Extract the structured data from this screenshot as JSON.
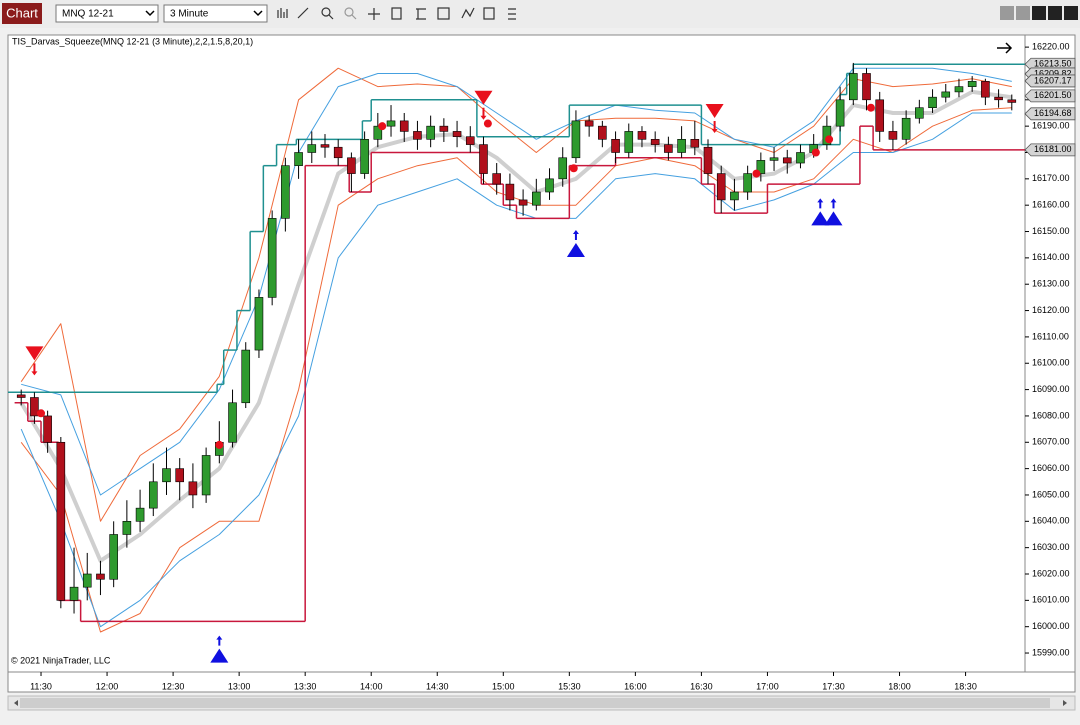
{
  "toolbar": {
    "title": "Chart",
    "instrument": "MNQ 12-21",
    "interval": "3 Minute"
  },
  "chart_data": {
    "type": "candlestick",
    "indicator_label": "TIS_Darvas_Squeeze(MNQ 12-21 (3 Minute),2,2,1.5,8,20,1)",
    "copyright": "© 2021 NinjaTrader, LLC",
    "xlim": [
      "11:15",
      "18:57"
    ],
    "ylim": [
      15982.8,
      16224.6
    ],
    "grid": false,
    "xticks": [
      "11:30",
      "12:00",
      "12:30",
      "13:00",
      "13:30",
      "14:00",
      "14:30",
      "15:00",
      "15:30",
      "16:00",
      "16:30",
      "17:00",
      "17:30",
      "18:00",
      "18:30"
    ],
    "yticks": [
      {
        "value": 16220,
        "label": "16220.00"
      },
      {
        "value": 16210,
        "label": "16210.00"
      },
      {
        "value": 16200,
        "label": "16200.00"
      },
      {
        "value": 16190,
        "label": "16190.00"
      },
      {
        "value": 16180,
        "label": "16180.00"
      },
      {
        "value": 16170,
        "label": "16170.00"
      },
      {
        "value": 16160,
        "label": "16160.00"
      },
      {
        "value": 16150,
        "label": "16150.00"
      },
      {
        "value": 16140,
        "label": "16140.00"
      },
      {
        "value": 16130,
        "label": "16130.00"
      },
      {
        "value": 16120,
        "label": "16120.00"
      },
      {
        "value": 16110,
        "label": "16110.00"
      },
      {
        "value": 16100,
        "label": "16100.00"
      },
      {
        "value": 16090,
        "label": "16090.00"
      },
      {
        "value": 16080,
        "label": "16080.00"
      },
      {
        "value": 16070,
        "label": "16070.00"
      },
      {
        "value": 16060,
        "label": "16060.00"
      },
      {
        "value": 16050,
        "label": "16050.00"
      },
      {
        "value": 16040,
        "label": "16040.00"
      },
      {
        "value": 16030,
        "label": "16030.00"
      },
      {
        "value": 16020,
        "label": "16020.00"
      },
      {
        "value": 16010,
        "label": "16010.00"
      },
      {
        "value": 16000,
        "label": "16000.00"
      },
      {
        "value": 15990,
        "label": "15990.00"
      }
    ],
    "up_color": "#2e9a2e",
    "down_color": "#b0101c",
    "x": [
      "11:21",
      "11:27",
      "11:33",
      "11:39",
      "11:45",
      "11:51",
      "11:57",
      "12:03",
      "12:09",
      "12:15",
      "12:21",
      "12:27",
      "12:33",
      "12:39",
      "12:45",
      "12:51",
      "12:57",
      "13:03",
      "13:09",
      "13:15",
      "13:21",
      "13:27",
      "13:33",
      "13:39",
      "13:45",
      "13:51",
      "13:57",
      "14:03",
      "14:09",
      "14:15",
      "14:21",
      "14:27",
      "14:33",
      "14:39",
      "14:45",
      "14:51",
      "14:57",
      "15:03",
      "15:09",
      "15:15",
      "15:21",
      "15:27",
      "15:33",
      "15:39",
      "15:45",
      "15:51",
      "15:57",
      "16:03",
      "16:09",
      "16:15",
      "16:21",
      "16:27",
      "16:33",
      "16:39",
      "16:45",
      "16:51",
      "16:57",
      "17:03",
      "17:09",
      "17:15",
      "17:21",
      "17:27",
      "17:33",
      "17:39",
      "17:45",
      "17:51",
      "17:57",
      "18:03",
      "18:09",
      "18:15",
      "18:21",
      "18:27",
      "18:33",
      "18:39",
      "18:45",
      "18:51"
    ],
    "candles": [
      [
        16088,
        16090,
        16084,
        16087
      ],
      [
        16087,
        16089,
        16077,
        16080
      ],
      [
        16080,
        16082,
        16066,
        16070
      ],
      [
        16070,
        16072,
        16007,
        16010
      ],
      [
        16010,
        16030,
        16005,
        16015
      ],
      [
        16015,
        16028,
        16010,
        16020
      ],
      [
        16020,
        16025,
        16012,
        16018
      ],
      [
        16018,
        16040,
        16015,
        16035
      ],
      [
        16035,
        16048,
        16030,
        16040
      ],
      [
        16040,
        16052,
        16036,
        16045
      ],
      [
        16045,
        16062,
        16042,
        16055
      ],
      [
        16055,
        16068,
        16050,
        16060
      ],
      [
        16060,
        16064,
        16048,
        16055
      ],
      [
        16055,
        16062,
        16045,
        16050
      ],
      [
        16050,
        16068,
        16047,
        16065
      ],
      [
        16065,
        16078,
        16062,
        16070
      ],
      [
        16070,
        16090,
        16068,
        16085
      ],
      [
        16085,
        16108,
        16083,
        16105
      ],
      [
        16105,
        16128,
        16102,
        16125
      ],
      [
        16125,
        16158,
        16122,
        16155
      ],
      [
        16155,
        16178,
        16150,
        16175
      ],
      [
        16175,
        16185,
        16170,
        16180
      ],
      [
        16180,
        16188,
        16176,
        16183
      ],
      [
        16183,
        16187,
        16178,
        16182
      ],
      [
        16182,
        16185,
        16175,
        16178
      ],
      [
        16178,
        16180,
        16165,
        16172
      ],
      [
        16172,
        16188,
        16170,
        16185
      ],
      [
        16185,
        16195,
        16182,
        16190
      ],
      [
        16190,
        16198,
        16186,
        16192
      ],
      [
        16192,
        16195,
        16184,
        16188
      ],
      [
        16188,
        16192,
        16181,
        16185
      ],
      [
        16185,
        16194,
        16182,
        16190
      ],
      [
        16190,
        16193,
        16184,
        16188
      ],
      [
        16188,
        16192,
        16182,
        16186
      ],
      [
        16186,
        16190,
        16180,
        16183
      ],
      [
        16183,
        16186,
        16168,
        16172
      ],
      [
        16172,
        16176,
        16164,
        16168
      ],
      [
        16168,
        16172,
        16158,
        16162
      ],
      [
        16162,
        16166,
        16156,
        16160
      ],
      [
        16160,
        16170,
        16158,
        16165
      ],
      [
        16165,
        16174,
        16162,
        16170
      ],
      [
        16170,
        16182,
        16167,
        16178
      ],
      [
        16178,
        16196,
        16176,
        16192
      ],
      [
        16192,
        16194,
        16186,
        16190
      ],
      [
        16190,
        16192,
        16182,
        16185
      ],
      [
        16185,
        16188,
        16176,
        16180
      ],
      [
        16180,
        16191,
        16178,
        16188
      ],
      [
        16188,
        16190,
        16182,
        16185
      ],
      [
        16185,
        16188,
        16180,
        16183
      ],
      [
        16183,
        16186,
        16177,
        16180
      ],
      [
        16180,
        16190,
        16178,
        16185
      ],
      [
        16185,
        16192,
        16179,
        16182
      ],
      [
        16182,
        16185,
        16168,
        16172
      ],
      [
        16172,
        16175,
        16157,
        16162
      ],
      [
        16162,
        16170,
        16158,
        16165
      ],
      [
        16165,
        16175,
        16162,
        16172
      ],
      [
        16172,
        16180,
        16169,
        16177
      ],
      [
        16177,
        16182,
        16173,
        16178
      ],
      [
        16178,
        16181,
        16172,
        16176
      ],
      [
        16176,
        16183,
        16174,
        16180
      ],
      [
        16180,
        16187,
        16178,
        16183
      ],
      [
        16183,
        16194,
        16181,
        16190
      ],
      [
        16190,
        16205,
        16188,
        16200
      ],
      [
        16200,
        16214,
        16198,
        16210
      ],
      [
        16210,
        16212,
        16196,
        16200
      ],
      [
        16200,
        16203,
        16184,
        16188
      ],
      [
        16188,
        16192,
        16181,
        16185
      ],
      [
        16185,
        16196,
        16183,
        16193
      ],
      [
        16193,
        16200,
        16191,
        16197
      ],
      [
        16197,
        16204,
        16195,
        16201
      ],
      [
        16201,
        16206,
        16199,
        16203
      ],
      [
        16203,
        16208,
        16201,
        16205
      ],
      [
        16205,
        16209,
        16203,
        16207
      ],
      [
        16207,
        16208,
        16198,
        16201
      ],
      [
        16201,
        16204,
        16197,
        16200
      ],
      [
        16200,
        16202,
        16196,
        16199
      ]
    ],
    "line_x": [
      "11:21",
      "11:39",
      "11:57",
      "12:15",
      "12:33",
      "12:51",
      "13:09",
      "13:27",
      "13:45",
      "14:03",
      "14:21",
      "14:39",
      "14:57",
      "15:15",
      "15:33",
      "15:51",
      "16:09",
      "16:27",
      "16:45",
      "17:03",
      "17:21",
      "17:39",
      "17:57",
      "18:15",
      "18:33",
      "18:51"
    ],
    "lines": [
      {
        "color": "#ef6a3a",
        "width": 1,
        "values": [
          16093,
          16115,
          16040,
          16065,
          16075,
          16095,
          16140,
          16200,
          16212,
          16205,
          16206,
          16205,
          16192,
          16180,
          16192,
          16193,
          16193,
          16192,
          16185,
          16180,
          16190,
          16208,
          16205,
          16206,
          16208,
          16205
        ]
      },
      {
        "color": "#ef6a3a",
        "width": 1,
        "values": [
          16070,
          16050,
          15998,
          16005,
          16030,
          16040,
          16040,
          16090,
          16160,
          16170,
          16175,
          16178,
          16165,
          16160,
          16160,
          16175,
          16178,
          16175,
          16165,
          16165,
          16170,
          16185,
          16180,
          16190,
          16196,
          16197
        ]
      },
      {
        "color": "#45a0e0",
        "width": 1,
        "values": [
          16092,
          16088,
          16050,
          16060,
          16070,
          16090,
          16125,
          16180,
          16205,
          16210,
          16210,
          16205,
          16195,
          16185,
          16192,
          16198,
          16196,
          16195,
          16185,
          16182,
          16192,
          16212,
          16212,
          16212,
          16210,
          16207
        ]
      },
      {
        "color": "#45a0e0",
        "width": 1,
        "values": [
          16075,
          16040,
          16000,
          16010,
          16025,
          16035,
          16050,
          16080,
          16140,
          16160,
          16165,
          16170,
          16160,
          16155,
          16155,
          16170,
          16172,
          16170,
          16158,
          16162,
          16168,
          16180,
          16180,
          16185,
          16195,
          16195
        ]
      },
      {
        "color": "#cfcfcf",
        "width": 4,
        "values": [
          16085,
          16060,
          16025,
          16035,
          16048,
          16060,
          16085,
          16130,
          16172,
          16182,
          16186,
          16187,
          16178,
          16165,
          16170,
          16183,
          16183,
          16182,
          16170,
          16172,
          16180,
          16198,
          16195,
          16195,
          16203,
          16201
        ]
      }
    ],
    "box_top": {
      "color": "#1f9090",
      "x": [
        "11:15",
        "12:50",
        "12:53",
        "12:59",
        "13:05",
        "13:11",
        "13:17",
        "13:26",
        "13:56",
        "14:00",
        "14:48",
        "15:30",
        "16:30",
        "17:33",
        "17:36",
        "17:39",
        "18:57"
      ],
      "values": [
        16089,
        16092,
        16105,
        16120,
        16150,
        16175,
        16183,
        16185,
        16192,
        16200,
        16186,
        16198,
        16183,
        16202,
        16210,
        16213.5,
        16213.5
      ]
    },
    "box_bottom": {
      "color": "#c8173c",
      "x": [
        "11:18",
        "11:24",
        "11:30",
        "11:38",
        "11:48",
        "13:30",
        "13:50",
        "14:00",
        "14:50",
        "15:00",
        "15:06",
        "15:30",
        "15:51",
        "16:30",
        "16:36",
        "17:00",
        "17:42",
        "17:48",
        "18:57"
      ],
      "values": [
        16085,
        16078,
        16070,
        16010,
        16002,
        16175,
        16165,
        16180,
        16168,
        16160,
        16155,
        16175,
        16178,
        16168,
        16157,
        16168,
        16190,
        16181,
        16181
      ]
    },
    "signals": [
      {
        "time": "11:27",
        "dir": "down",
        "price": 16103,
        "color": "#e8101c"
      },
      {
        "time": "14:51",
        "dir": "down",
        "price": 16200,
        "color": "#e8101c"
      },
      {
        "time": "16:36",
        "dir": "down",
        "price": 16195,
        "color": "#e8101c"
      },
      {
        "time": "12:51",
        "dir": "up",
        "price": 15989,
        "color": "#1010e0"
      },
      {
        "time": "15:33",
        "dir": "up",
        "price": 16143,
        "color": "#1010e0"
      },
      {
        "time": "17:24",
        "dir": "up",
        "price": 16155,
        "color": "#1010e0"
      },
      {
        "time": "17:30",
        "dir": "up",
        "price": 16155,
        "color": "#1010e0"
      }
    ],
    "dots": {
      "color": "#e8101c",
      "x": [
        "11:30",
        "12:51",
        "14:05",
        "14:53",
        "15:32",
        "16:55",
        "17:22",
        "17:28",
        "17:47"
      ],
      "values": [
        16081,
        16069,
        16190,
        16191,
        16174,
        16172,
        16180,
        16185,
        16197
      ]
    },
    "price_labels": [
      {
        "value": 16213.5,
        "label": "16213.50"
      },
      {
        "value": 16209.82,
        "label": "16209.82"
      },
      {
        "value": 16207.17,
        "label": "16207.17"
      },
      {
        "value": 16201.5,
        "label": "16201.50"
      },
      {
        "value": 16194.68,
        "label": "16194.68"
      },
      {
        "value": 16181,
        "label": "16181.00"
      }
    ]
  }
}
